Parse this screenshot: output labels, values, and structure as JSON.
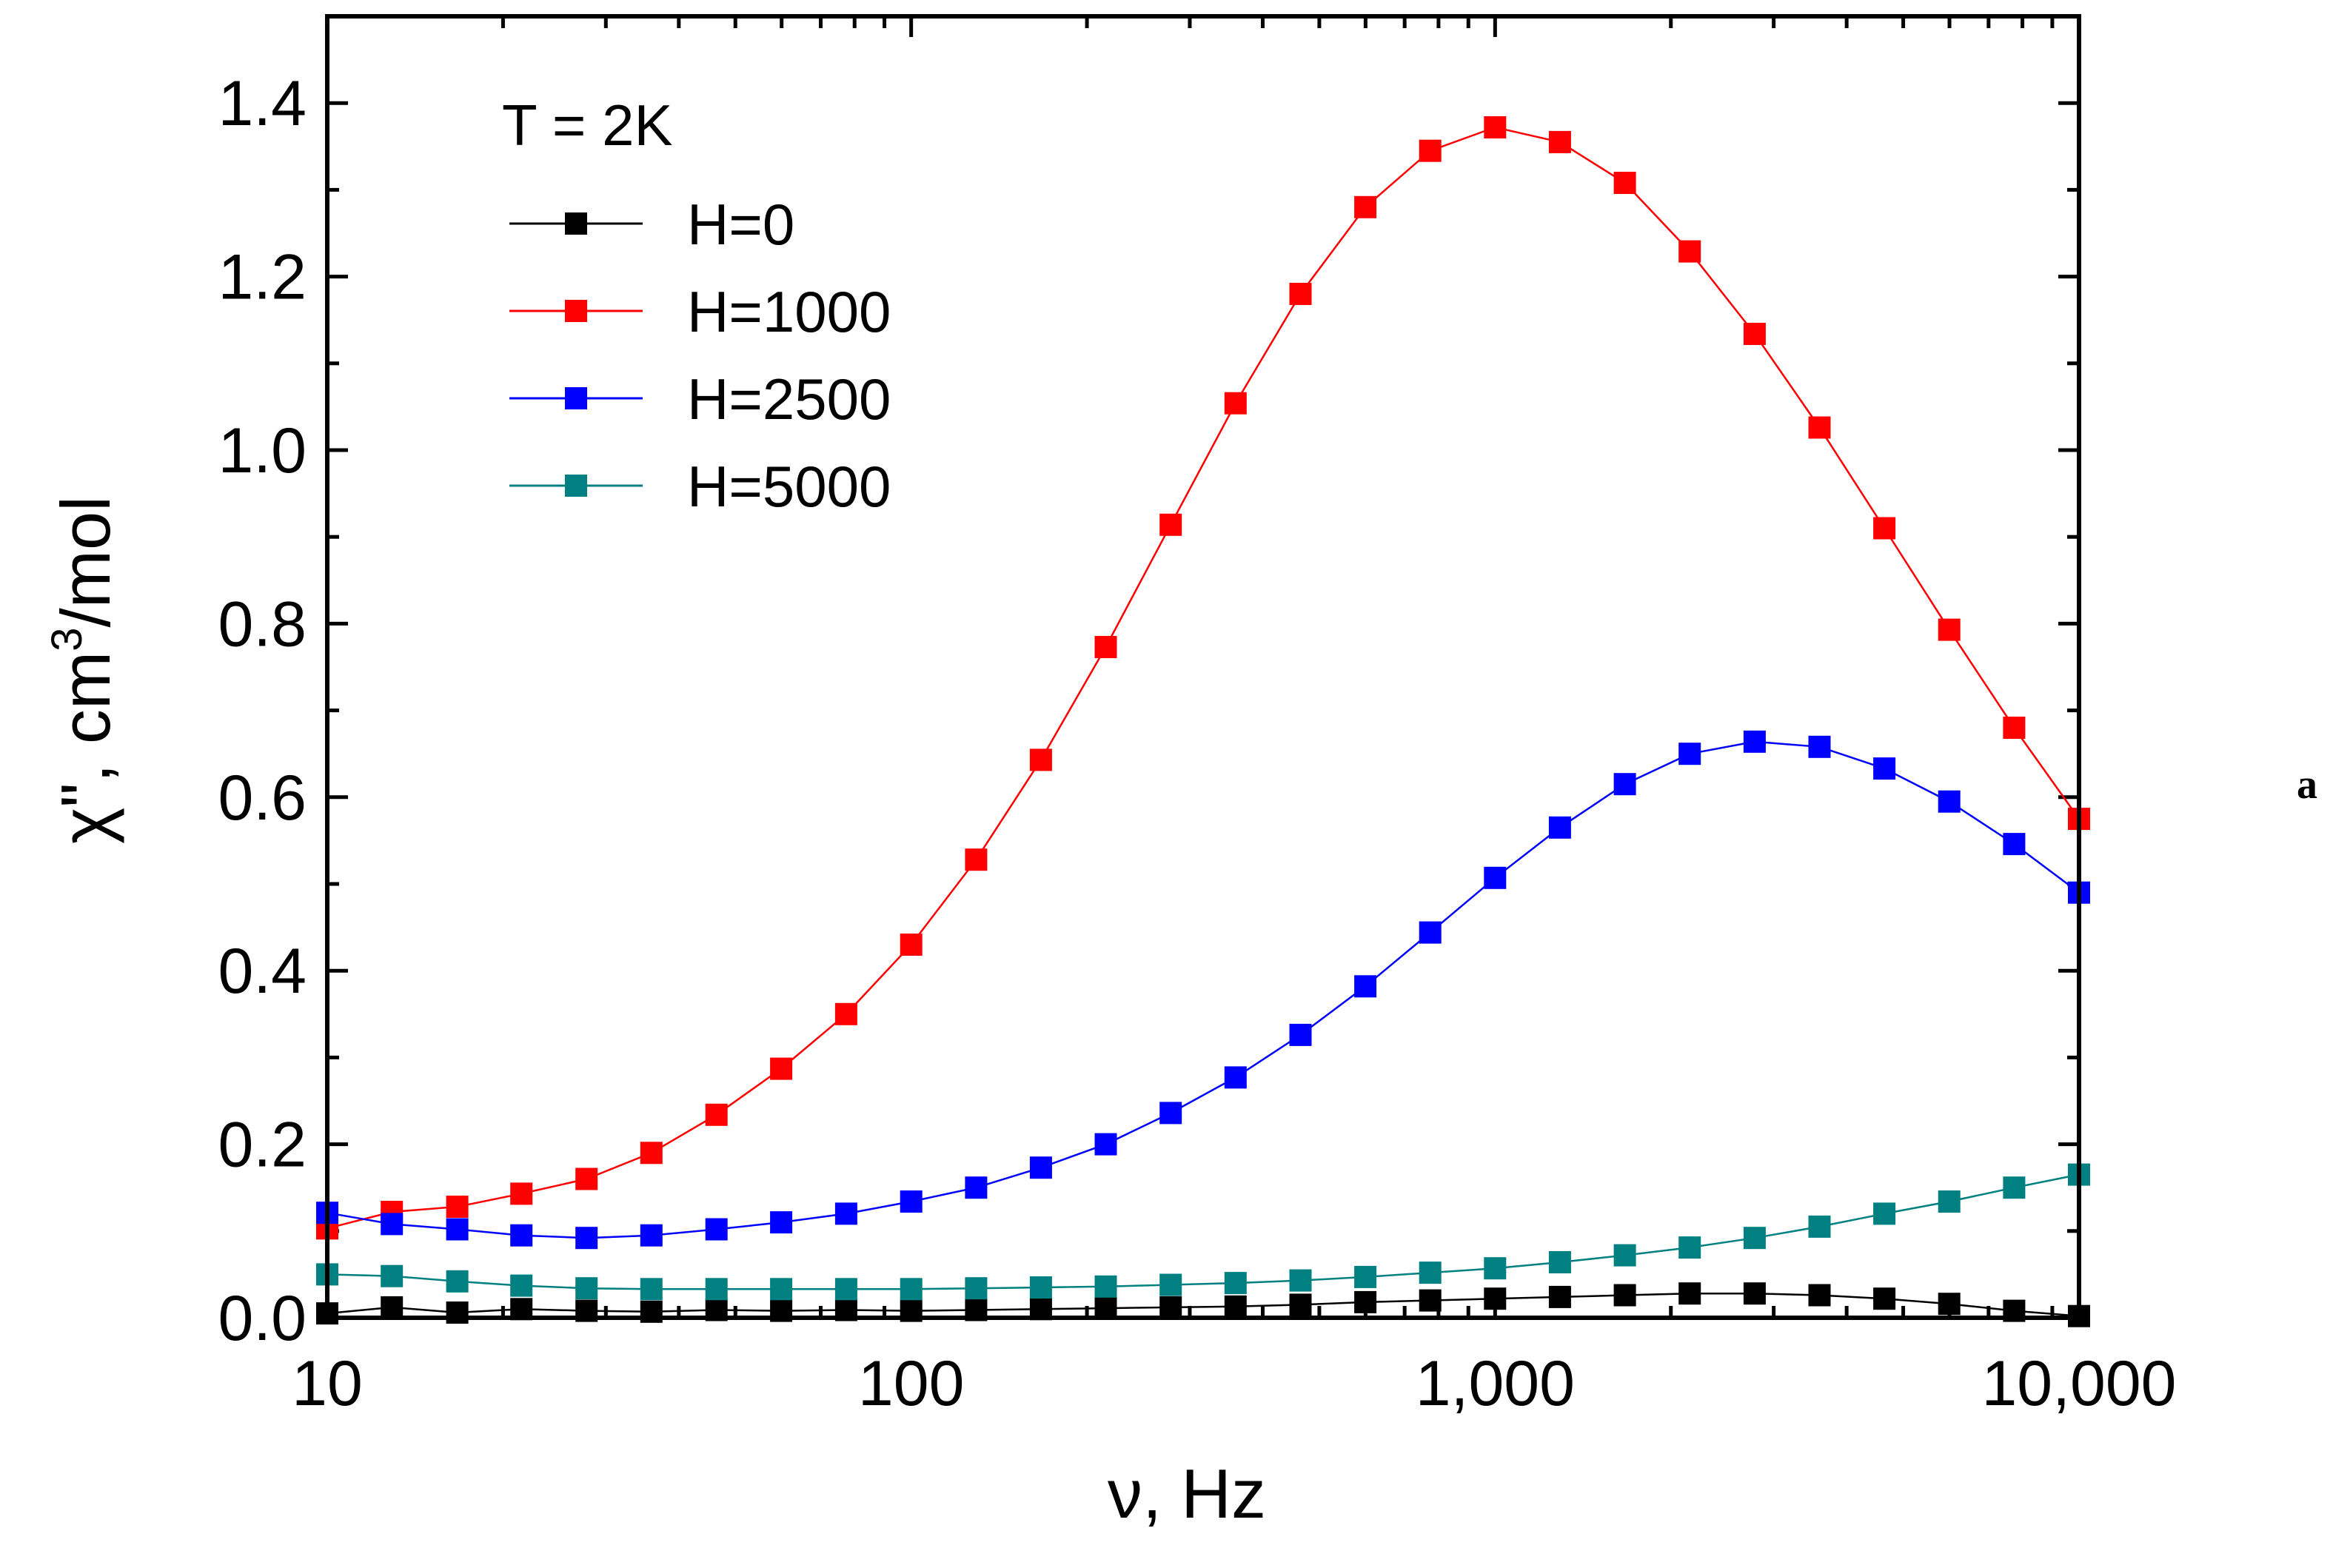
{
  "chart_data": {
    "type": "line",
    "title": "",
    "annotation": "T = 2K",
    "panel_label": "a",
    "xlabel": "ν, Hz",
    "ylabel_prefix": "χ\", cm",
    "ylabel_sup": "3",
    "ylabel_suffix": "/mol",
    "xscale": "log",
    "xlim": [
      10,
      10000
    ],
    "ylim": [
      0.0,
      1.5
    ],
    "xticks": [
      10,
      100,
      1000,
      10000
    ],
    "xtick_labels": [
      "10",
      "100",
      "1,000",
      "10,000"
    ],
    "yticks": [
      0.0,
      0.2,
      0.4,
      0.6,
      0.8,
      1.0,
      1.2,
      1.4
    ],
    "ytick_labels": [
      "0.0",
      "0.2",
      "0.4",
      "0.6",
      "0.8",
      "1.0",
      "1.2",
      "1.4"
    ],
    "legend_position": "top-left",
    "x": [
      10,
      12.9,
      16.7,
      21.5,
      27.8,
      35.9,
      46.4,
      59.9,
      77.4,
      100,
      129.2,
      166.8,
      215.4,
      278.3,
      359.4,
      464.2,
      599.5,
      774.3,
      1000,
      1291.5,
      1668.1,
      2154.4,
      2782.6,
      3593.8,
      4641.6,
      5994.8,
      7742.6,
      10000
    ],
    "series": [
      {
        "name": "H=0",
        "color": "#000000",
        "values": [
          0.005,
          0.012,
          0.006,
          0.01,
          0.008,
          0.007,
          0.009,
          0.008,
          0.009,
          0.008,
          0.009,
          0.01,
          0.011,
          0.012,
          0.013,
          0.015,
          0.018,
          0.02,
          0.022,
          0.024,
          0.026,
          0.028,
          0.028,
          0.026,
          0.022,
          0.016,
          0.008,
          0.002
        ]
      },
      {
        "name": "H=1000",
        "color": "#ff0000",
        "values": [
          0.103,
          0.122,
          0.128,
          0.143,
          0.16,
          0.19,
          0.234,
          0.287,
          0.35,
          0.43,
          0.528,
          0.643,
          0.773,
          0.914,
          1.054,
          1.18,
          1.28,
          1.345,
          1.372,
          1.355,
          1.308,
          1.229,
          1.134,
          1.026,
          0.91,
          0.793,
          0.68,
          0.575
        ]
      },
      {
        "name": "H=2500",
        "color": "#0000ff",
        "values": [
          0.121,
          0.108,
          0.102,
          0.095,
          0.092,
          0.095,
          0.102,
          0.11,
          0.12,
          0.134,
          0.15,
          0.173,
          0.2,
          0.236,
          0.277,
          0.326,
          0.382,
          0.444,
          0.507,
          0.565,
          0.615,
          0.65,
          0.664,
          0.658,
          0.633,
          0.595,
          0.546,
          0.49
        ]
      },
      {
        "name": "H=5000",
        "color": "#008080",
        "values": [
          0.05,
          0.048,
          0.042,
          0.037,
          0.034,
          0.033,
          0.033,
          0.033,
          0.033,
          0.033,
          0.034,
          0.035,
          0.036,
          0.038,
          0.04,
          0.043,
          0.047,
          0.052,
          0.057,
          0.064,
          0.072,
          0.081,
          0.092,
          0.105,
          0.12,
          0.134,
          0.15,
          0.165
        ]
      }
    ]
  }
}
